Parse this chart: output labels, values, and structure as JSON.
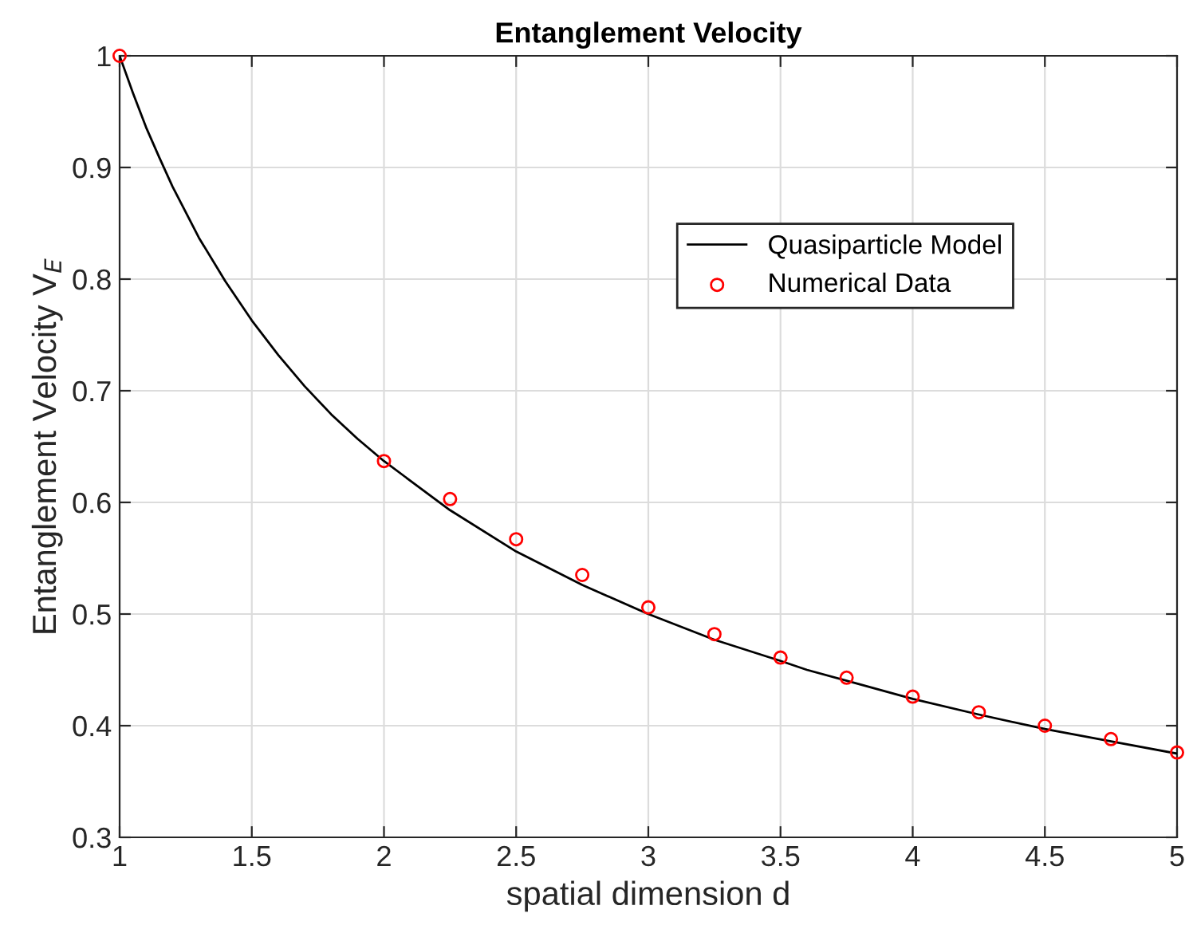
{
  "chart_data": {
    "type": "line",
    "title": "Entanglement Velocity",
    "xlabel": "spatial dimension d",
    "ylabel": "Entanglement Velocity V$_{E}$",
    "series": [
      {
        "name": "Quasiparticle Model",
        "color": "#000000",
        "marker": "none",
        "line_style": "solid",
        "x": [
          1,
          1.05,
          1.1,
          1.15,
          1.2,
          1.3,
          1.4,
          1.5,
          1.6,
          1.7,
          1.8,
          1.9,
          2,
          2.25,
          2.5,
          2.75,
          3,
          3.25,
          3.5,
          3.6,
          3.8,
          4,
          4.25,
          4.5,
          4.75,
          5
        ],
        "values": [
          1,
          0.967,
          0.936,
          0.909,
          0.883,
          0.837,
          0.798,
          0.763,
          0.732,
          0.704,
          0.679,
          0.657,
          0.637,
          0.593,
          0.556,
          0.526,
          0.5,
          0.477,
          0.458,
          0.45,
          0.437,
          0.424,
          0.41,
          0.397,
          0.386,
          0.375
        ]
      },
      {
        "name": "Numerical Data",
        "type": "scatter",
        "color": "#ff0000",
        "marker": "circle",
        "x": [
          1,
          2,
          2.25,
          2.5,
          2.75,
          3,
          3.25,
          3.5,
          3.75,
          4,
          4.25,
          4.5,
          4.75,
          5
        ],
        "values": [
          1,
          0.637,
          0.603,
          0.567,
          0.535,
          0.506,
          0.482,
          0.461,
          0.443,
          0.426,
          0.412,
          0.4,
          0.388,
          0.376
        ]
      }
    ],
    "xlim": [
      1,
      5
    ],
    "xticks": [
      1,
      1.5,
      2,
      2.5,
      3,
      3.5,
      4,
      4.5,
      5
    ],
    "ylim": [
      0.3,
      1
    ],
    "yticks": [
      0.3,
      0.4,
      0.5,
      0.6,
      0.7,
      0.8,
      0.9,
      1
    ],
    "grid": true,
    "legend": "top right"
  }
}
